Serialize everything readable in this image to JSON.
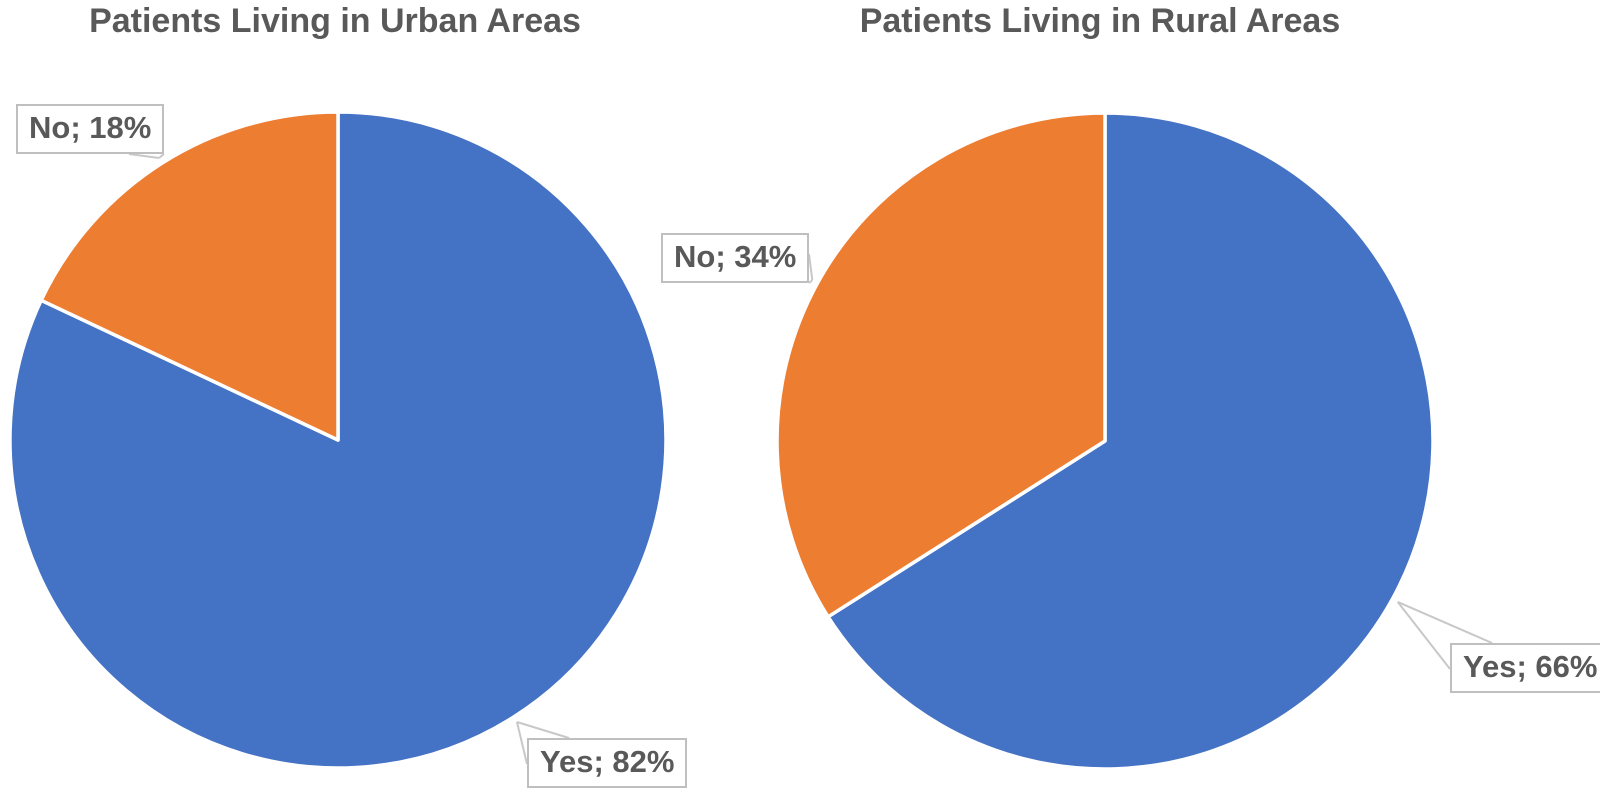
{
  "figure": {
    "kind": "two-pie-chart-figure",
    "background": "#ffffff",
    "text_color": "#595959",
    "callout_border_color": "#BFBFBF",
    "leader_line_color": "#C9C7C7",
    "slice_divider_color": "#ffffff"
  },
  "chart_data": [
    {
      "type": "pie",
      "title": "Patients Living in Urban Areas",
      "categories": [
        "Yes",
        "No"
      ],
      "values": [
        82,
        18
      ],
      "unit": "%",
      "colors": [
        "#4472C4",
        "#ED7D31"
      ],
      "data_labels": [
        "Yes; 82%",
        "No; 18%"
      ],
      "label_separator": "; ",
      "start_angle_deg": 0,
      "direction": "clockwise",
      "legend": "none"
    },
    {
      "type": "pie",
      "title": "Patients Living in Rural Areas",
      "categories": [
        "Yes",
        "No"
      ],
      "values": [
        66,
        34
      ],
      "unit": "%",
      "colors": [
        "#4472C4",
        "#ED7D31"
      ],
      "data_labels": [
        "Yes; 66%",
        "No; 34%"
      ],
      "label_separator": "; ",
      "start_angle_deg": 0,
      "direction": "clockwise",
      "legend": "none"
    }
  ]
}
